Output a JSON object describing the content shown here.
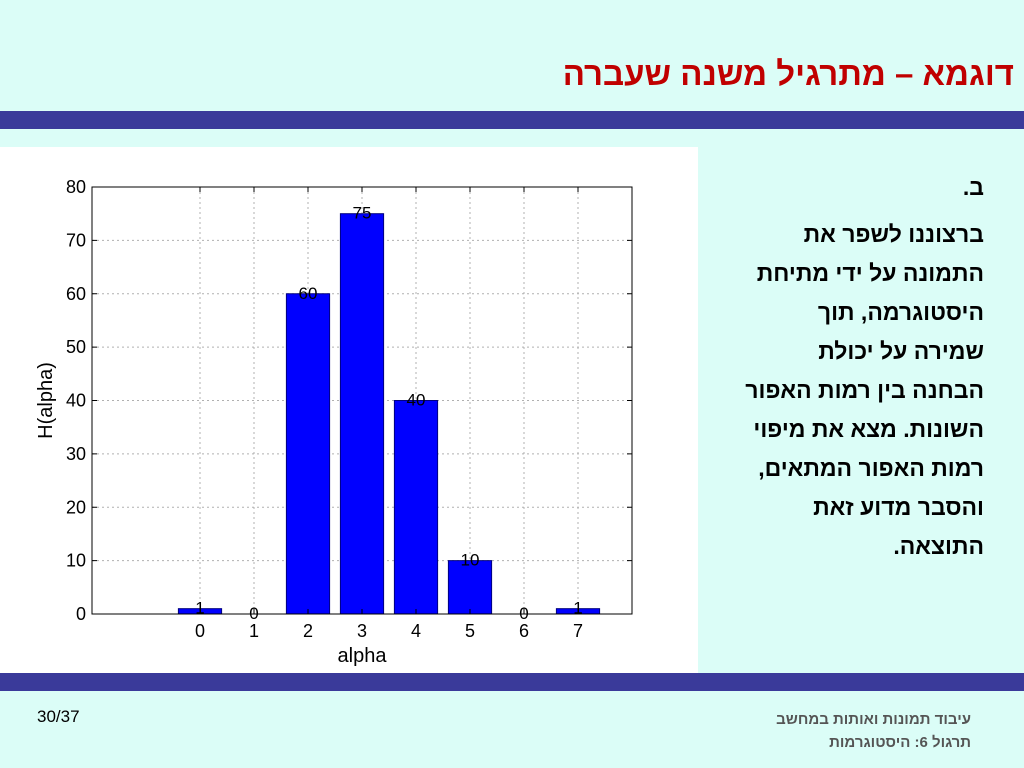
{
  "slide": {
    "title": "דוגמא – מתרגיל משנה שעברה",
    "page_number": "30/37",
    "footer_line1": "עיבוד תמונות ואותות במחשב",
    "footer_line2": "תרגול 6: היסטוגרמות"
  },
  "content": {
    "section_letter": "ב.",
    "lines": [
      "ברצוננו לשפר את",
      "התמונה על ידי מתיחת",
      "היסטוגרמה, תוך",
      "שמירה על יכולת",
      "הבחנה בין רמות האפור",
      "השונות. מצא את מיפוי",
      "רמות האפור המתאים,",
      "והסבר מדוע זאת",
      "התוצאה."
    ]
  },
  "colors": {
    "accent_band": "#3a3a9a",
    "title": "#c00000",
    "background": "#dbfdf7",
    "bar": "#0000ff"
  },
  "chart_data": {
    "type": "bar",
    "categories": [
      "0",
      "1",
      "2",
      "3",
      "4",
      "5",
      "6",
      "7"
    ],
    "values": [
      1,
      0,
      60,
      75,
      40,
      10,
      0,
      1
    ],
    "data_labels": [
      "1",
      "0",
      "60",
      "75",
      "40",
      "10",
      "0",
      "1"
    ],
    "xlabel": "alpha",
    "ylabel": "H(alpha)",
    "xlim": [
      -2,
      8
    ],
    "ylim": [
      0,
      80
    ],
    "yticks": [
      0,
      10,
      20,
      30,
      40,
      50,
      60,
      70,
      80
    ],
    "grid": true
  }
}
